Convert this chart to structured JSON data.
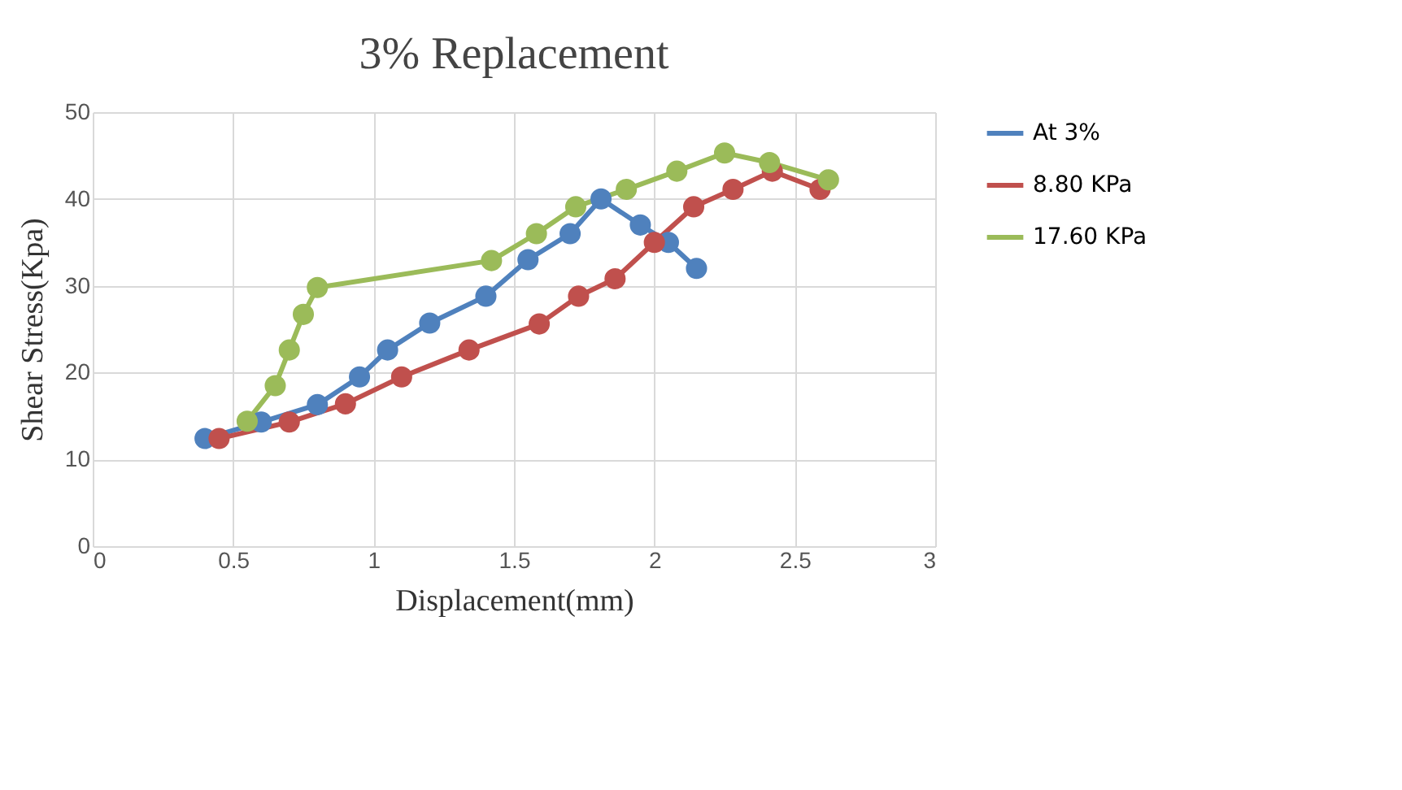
{
  "chart_data": {
    "type": "line",
    "title": "3% Replacement",
    "xlabel": "Displacement(mm)",
    "ylabel": "Shear Stress(Kpa)",
    "xlim": [
      0,
      3
    ],
    "xticks": [
      0,
      0.5,
      1,
      1.5,
      2,
      2.5,
      3
    ],
    "ylim": [
      0,
      50
    ],
    "yticks": [
      0,
      10,
      20,
      30,
      40,
      50
    ],
    "grid": true,
    "legend": "right",
    "marker": "circle",
    "series": [
      {
        "name": "At 3%",
        "color": "#4f81bd",
        "x": [
          0.4,
          0.6,
          0.8,
          0.95,
          1.05,
          1.2,
          1.4,
          1.55,
          1.7,
          1.81,
          1.95,
          2.05,
          2.15
        ],
        "values": [
          12.4,
          14.3,
          16.3,
          19.5,
          22.6,
          25.7,
          28.8,
          33,
          36,
          40,
          37,
          35,
          32
        ]
      },
      {
        "name": "8.80 KPa",
        "color": "#c0504d",
        "x": [
          0.45,
          0.7,
          0.9,
          1.1,
          1.34,
          1.59,
          1.73,
          1.86,
          2.0,
          2.14,
          2.28,
          2.42,
          2.59
        ],
        "values": [
          12.4,
          14.3,
          16.4,
          19.5,
          22.6,
          25.6,
          28.8,
          30.8,
          35,
          39.1,
          41.1,
          43.2,
          41.1
        ]
      },
      {
        "name": "17.60 KPa",
        "color": "#9bbb59",
        "x": [
          0.55,
          0.65,
          0.7,
          0.75,
          0.8,
          1.42,
          1.58,
          1.72,
          1.9,
          2.08,
          2.25,
          2.41,
          2.62
        ],
        "values": [
          14.4,
          18.5,
          22.6,
          26.7,
          29.8,
          32.9,
          36,
          39.1,
          41.1,
          43.2,
          45.3,
          44.2,
          42.2
        ]
      }
    ]
  }
}
